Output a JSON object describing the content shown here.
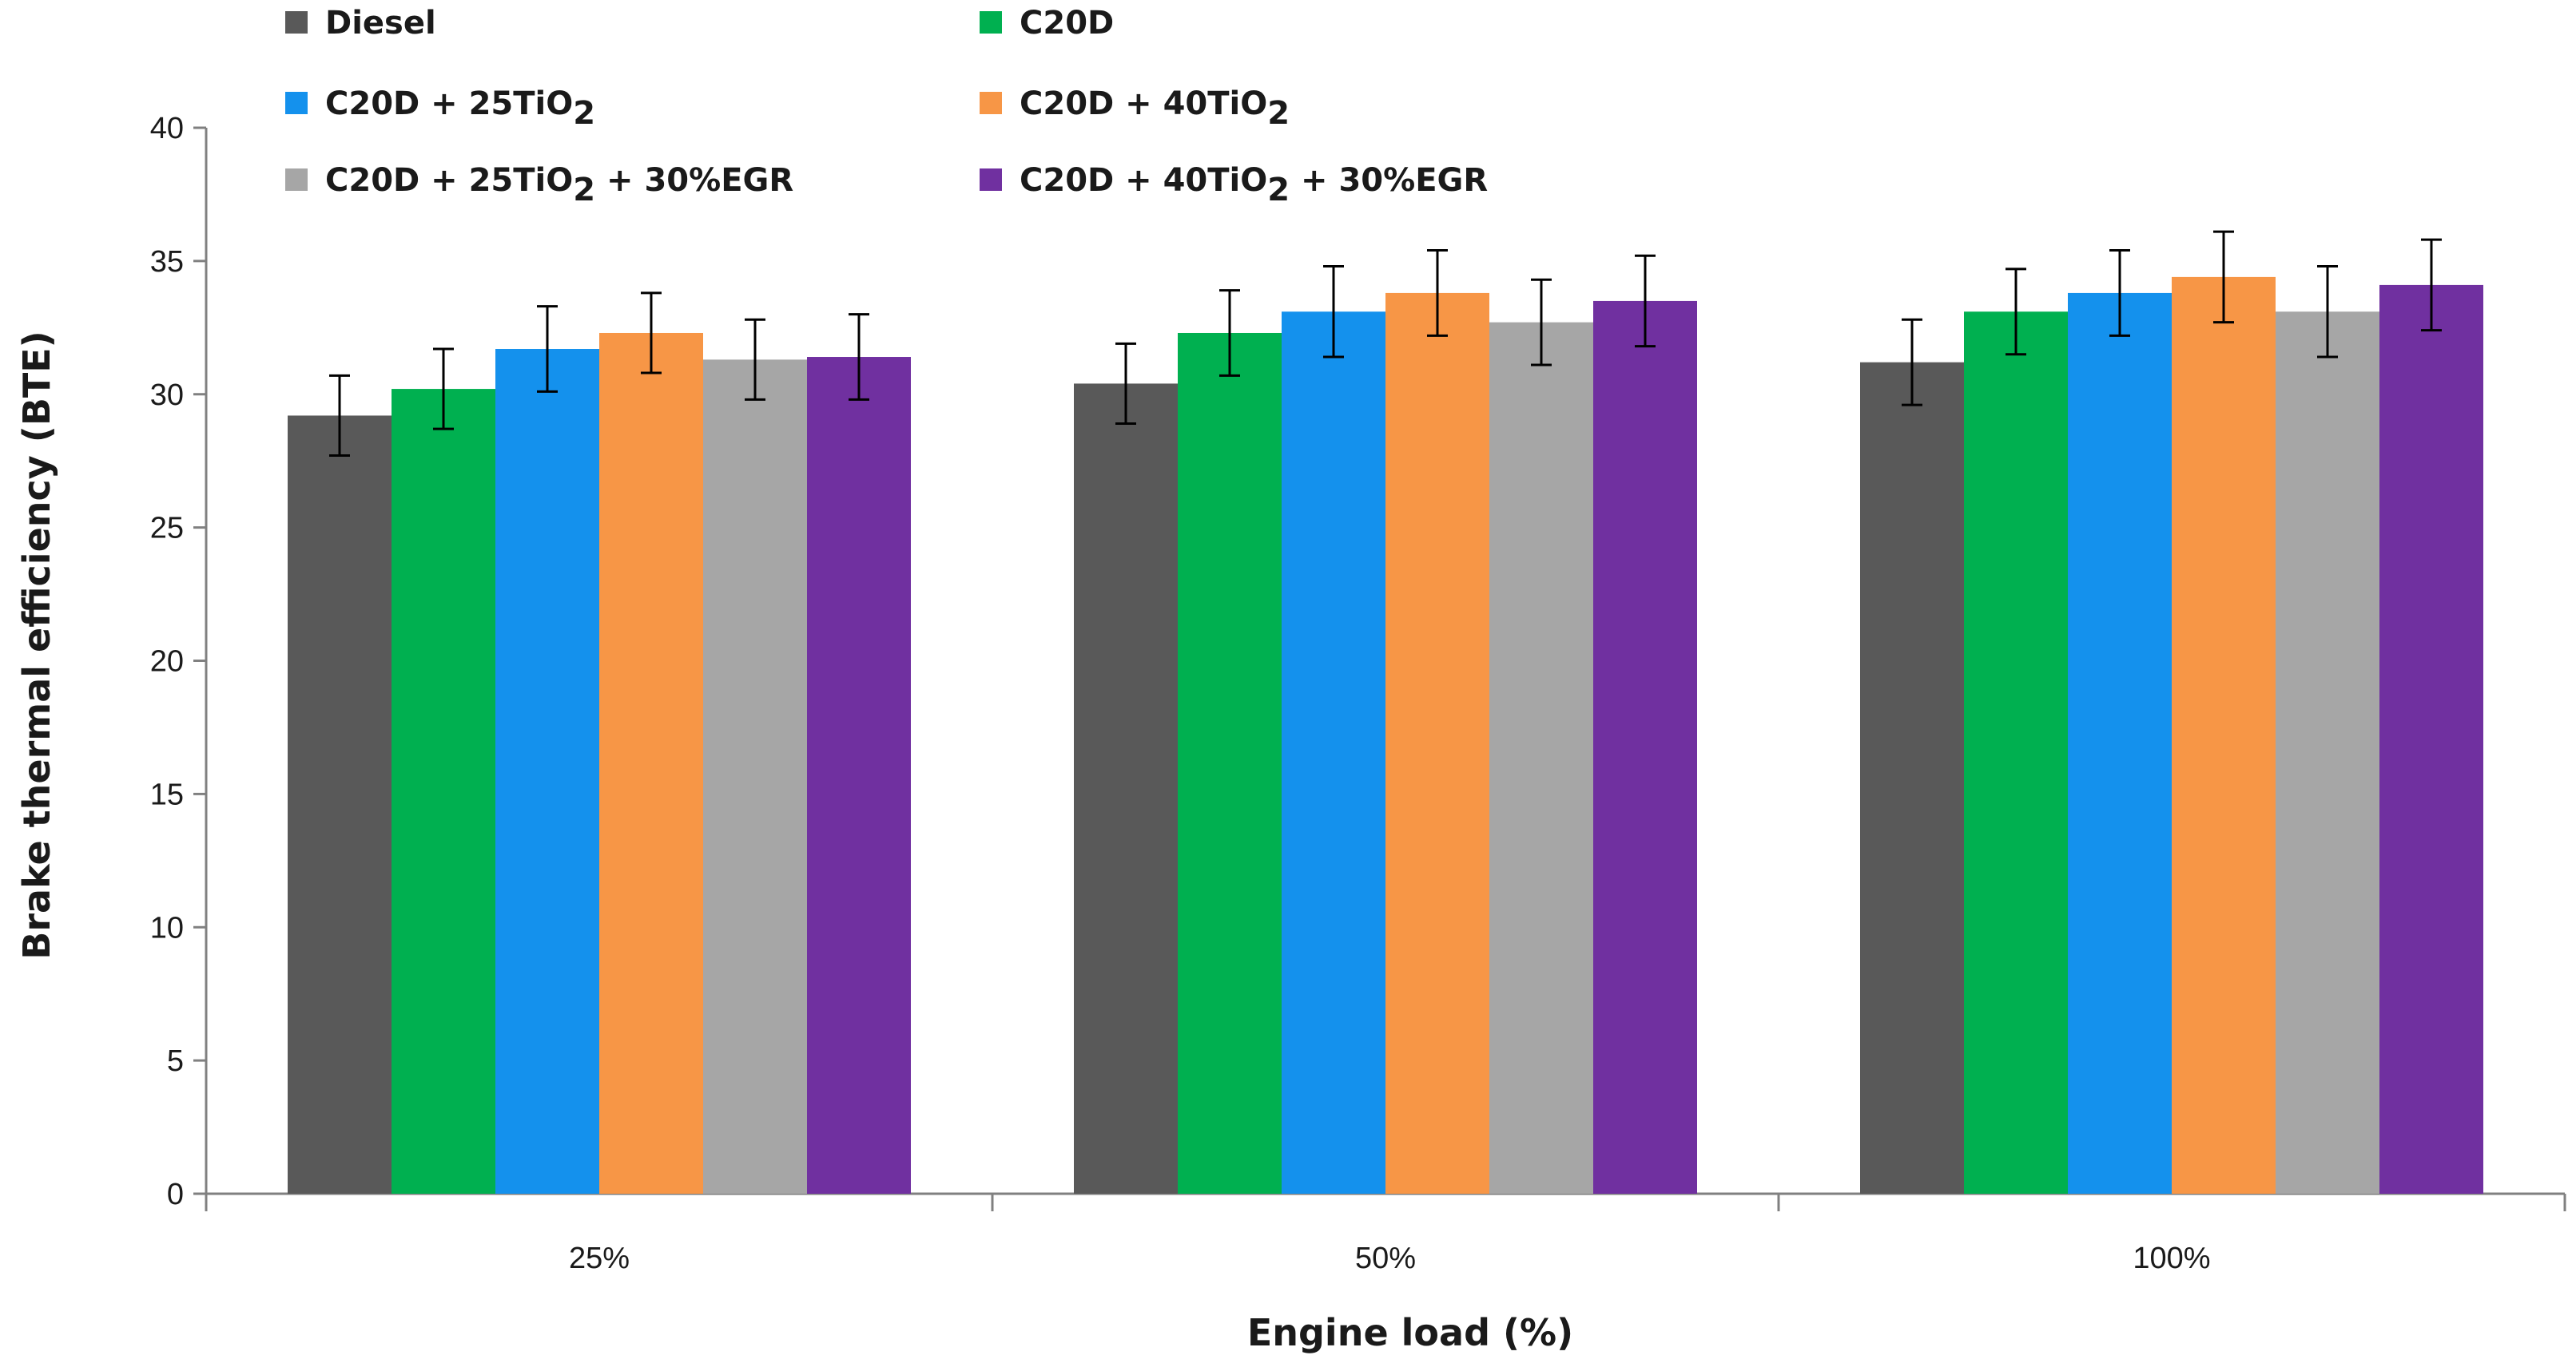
{
  "chart_data": {
    "type": "bar",
    "title": "",
    "xlabel": "Engine load (%)",
    "ylabel": "Brake thermal efficiency (BTE)",
    "ylim": [
      0,
      40
    ],
    "yticks": [
      "0",
      "5",
      "10",
      "15",
      "20",
      "25",
      "30",
      "35",
      "40"
    ],
    "grid": false,
    "legend_position": "top",
    "categories": [
      "25%",
      "50%",
      "100%"
    ],
    "series": [
      {
        "name": "Diesel",
        "legend": {
          "base": "Diesel",
          "sub": "",
          "tail": ""
        },
        "color": "#595959",
        "values": [
          29.2,
          30.4,
          31.2
        ],
        "errors": [
          1.5,
          1.5,
          1.6
        ]
      },
      {
        "name": "C20D",
        "legend": {
          "base": "C20D",
          "sub": "",
          "tail": ""
        },
        "color": "#00b050",
        "values": [
          30.2,
          32.3,
          33.1
        ],
        "errors": [
          1.5,
          1.6,
          1.6
        ]
      },
      {
        "name": "C20D + 25TiO2",
        "legend": {
          "base": "C20D + 25TiO",
          "sub": "2",
          "tail": ""
        },
        "color": "#1491ed",
        "values": [
          31.7,
          33.1,
          33.8
        ],
        "errors": [
          1.6,
          1.7,
          1.6
        ]
      },
      {
        "name": "C20D + 40TiO2",
        "legend": {
          "base": "C20D + 40TiO",
          "sub": "2",
          "tail": ""
        },
        "color": "#f79646",
        "values": [
          32.3,
          33.8,
          34.4
        ],
        "errors": [
          1.5,
          1.6,
          1.7
        ]
      },
      {
        "name": "C20D + 25TiO2 + 30%EGR",
        "legend": {
          "base": "C20D + 25TiO",
          "sub": "2",
          "tail": " + 30%EGR"
        },
        "color": "#a6a6a6",
        "values": [
          31.3,
          32.7,
          33.1
        ],
        "errors": [
          1.5,
          1.6,
          1.7
        ]
      },
      {
        "name": "C20D + 40TiO2 + 30%EGR",
        "legend": {
          "base": "C20D + 40TiO",
          "sub": "2",
          "tail": " + 30%EGR"
        },
        "color": "#7030a0",
        "values": [
          31.4,
          33.5,
          34.1
        ],
        "errors": [
          1.6,
          1.7,
          1.7
        ]
      }
    ]
  }
}
